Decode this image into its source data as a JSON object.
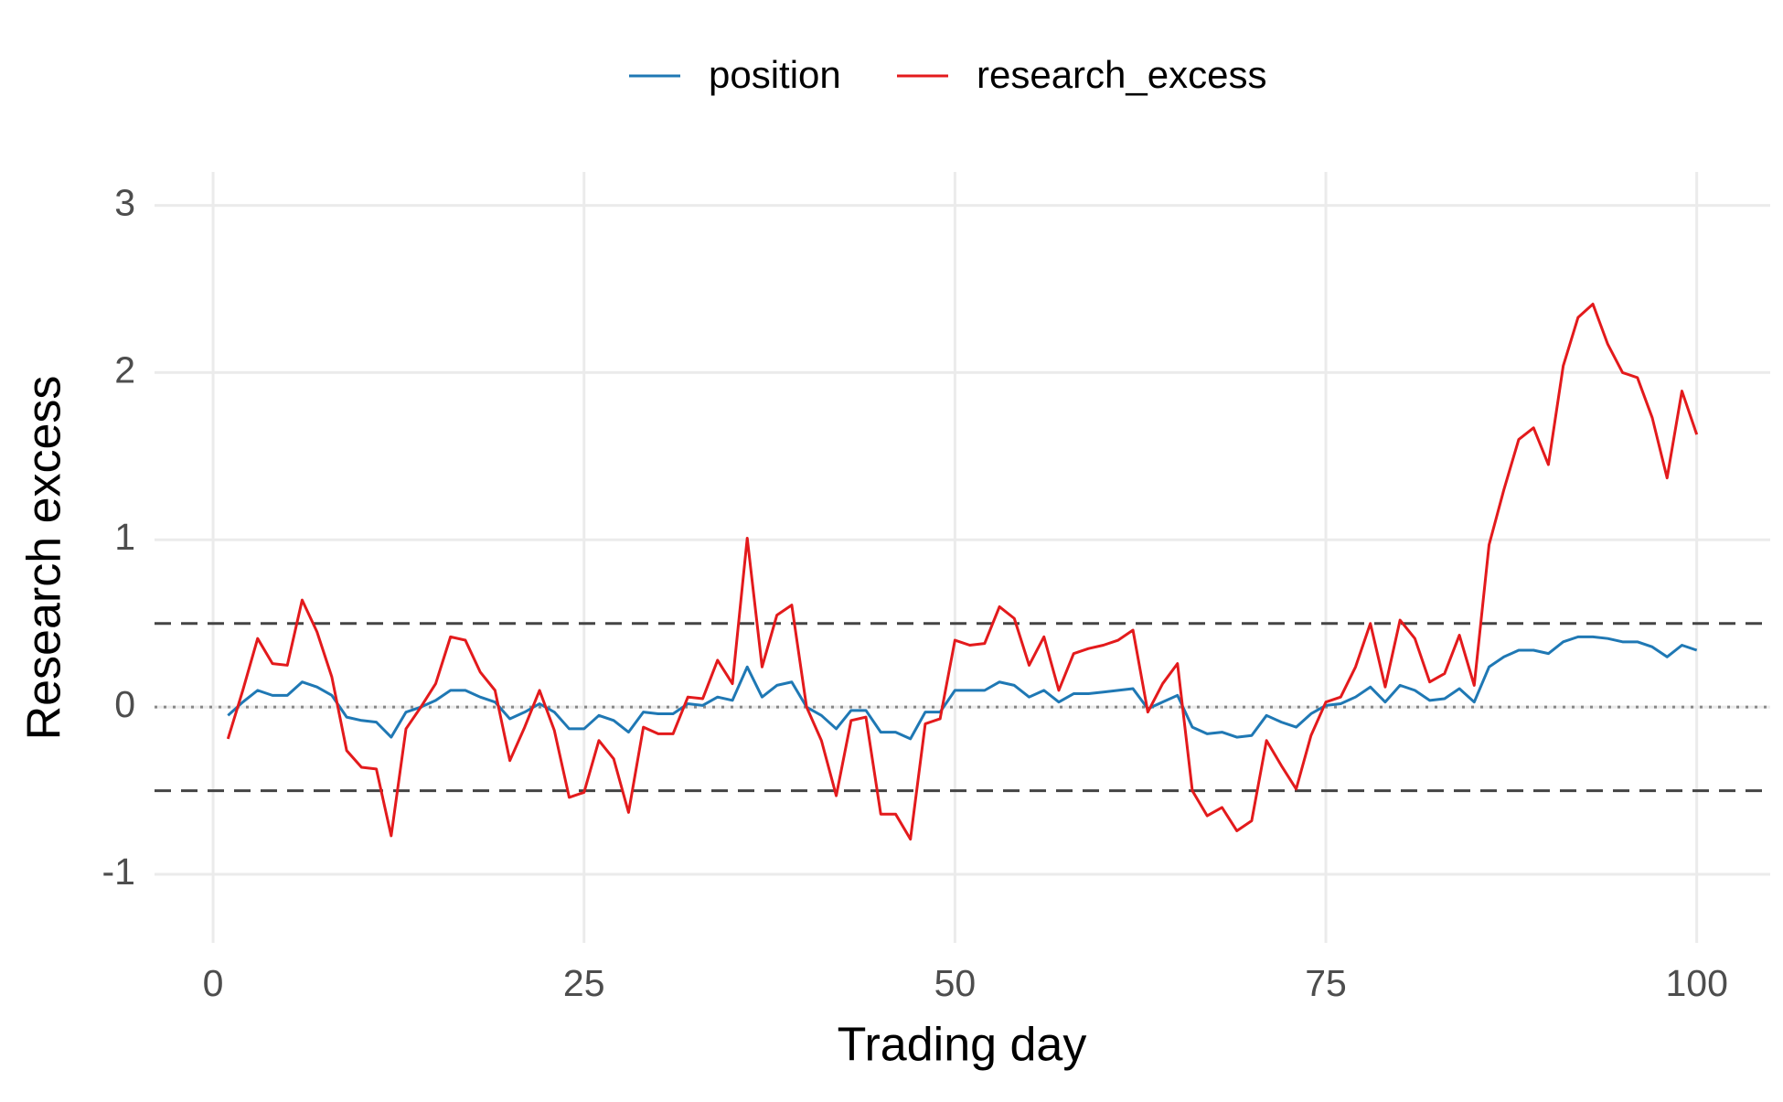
{
  "chart_data": {
    "type": "line",
    "x_label": "Trading day",
    "y_label": "Research excess",
    "legend": "top",
    "grid": true,
    "xlim": [
      -3.95,
      104.95
    ],
    "ylim": [
      -1.41,
      3.2
    ],
    "xticks": [
      0,
      25,
      50,
      75,
      100
    ],
    "yticks": [
      -1,
      0,
      1,
      2,
      3
    ],
    "reference_lines": [
      {
        "value": 0.5,
        "style": "dashed",
        "color": "#444444"
      },
      {
        "value": -0.5,
        "style": "dashed",
        "color": "#444444"
      },
      {
        "value": 0,
        "style": "dotted",
        "color": "#888888"
      }
    ],
    "x": [
      1,
      2,
      3,
      4,
      5,
      6,
      7,
      8,
      9,
      10,
      11,
      12,
      13,
      14,
      15,
      16,
      17,
      18,
      19,
      20,
      21,
      22,
      23,
      24,
      25,
      26,
      27,
      28,
      29,
      30,
      31,
      32,
      33,
      34,
      35,
      36,
      37,
      38,
      39,
      40,
      41,
      42,
      43,
      44,
      45,
      46,
      47,
      48,
      49,
      50,
      51,
      52,
      53,
      54,
      55,
      56,
      57,
      58,
      59,
      60,
      61,
      62,
      63,
      64,
      65,
      66,
      67,
      68,
      69,
      70,
      71,
      72,
      73,
      74,
      75,
      76,
      77,
      78,
      79,
      80,
      81,
      82,
      83,
      84,
      85,
      86,
      87,
      88,
      89,
      90,
      91,
      92,
      93,
      94,
      95,
      96,
      97,
      98,
      99,
      100
    ],
    "series": [
      {
        "name": "position",
        "color": "#1f78b4",
        "values": [
          -0.05,
          0.03,
          0.1,
          0.07,
          0.07,
          0.15,
          0.12,
          0.07,
          -0.06,
          -0.08,
          -0.09,
          -0.18,
          -0.03,
          0.0,
          0.04,
          0.1,
          0.1,
          0.06,
          0.03,
          -0.07,
          -0.03,
          0.02,
          -0.03,
          -0.13,
          -0.13,
          -0.05,
          -0.08,
          -0.15,
          -0.03,
          -0.04,
          -0.04,
          0.02,
          0.01,
          0.06,
          0.04,
          0.24,
          0.06,
          0.13,
          0.15,
          0.0,
          -0.05,
          -0.13,
          -0.02,
          -0.02,
          -0.15,
          -0.15,
          -0.19,
          -0.03,
          -0.03,
          0.1,
          0.1,
          0.1,
          0.15,
          0.13,
          0.06,
          0.1,
          0.03,
          0.08,
          0.08,
          0.09,
          0.1,
          0.11,
          -0.01,
          0.03,
          0.07,
          -0.12,
          -0.16,
          -0.15,
          -0.18,
          -0.17,
          -0.05,
          -0.09,
          -0.12,
          -0.04,
          0.01,
          0.02,
          0.06,
          0.12,
          0.03,
          0.13,
          0.1,
          0.04,
          0.05,
          0.11,
          0.03,
          0.24,
          0.3,
          0.34,
          0.34,
          0.32,
          0.39,
          0.42,
          0.42,
          0.41,
          0.39,
          0.39,
          0.36,
          0.3,
          0.37,
          0.34
        ]
      },
      {
        "name": "research_excess",
        "color": "#e31a1c",
        "values": [
          -0.19,
          0.1,
          0.41,
          0.26,
          0.25,
          0.64,
          0.45,
          0.18,
          -0.26,
          -0.36,
          -0.37,
          -0.77,
          -0.13,
          0.0,
          0.14,
          0.42,
          0.4,
          0.21,
          0.1,
          -0.32,
          -0.12,
          0.1,
          -0.14,
          -0.54,
          -0.51,
          -0.2,
          -0.31,
          -0.63,
          -0.12,
          -0.16,
          -0.16,
          0.06,
          0.05,
          0.28,
          0.14,
          1.01,
          0.24,
          0.55,
          0.61,
          0.0,
          -0.2,
          -0.53,
          -0.08,
          -0.06,
          -0.64,
          -0.64,
          -0.79,
          -0.1,
          -0.07,
          0.4,
          0.37,
          0.38,
          0.6,
          0.53,
          0.25,
          0.42,
          0.1,
          0.32,
          0.35,
          0.37,
          0.4,
          0.46,
          -0.03,
          0.14,
          0.26,
          -0.5,
          -0.65,
          -0.6,
          -0.74,
          -0.68,
          -0.2,
          -0.35,
          -0.49,
          -0.17,
          0.03,
          0.06,
          0.24,
          0.5,
          0.12,
          0.52,
          0.41,
          0.15,
          0.2,
          0.43,
          0.13,
          0.97,
          1.3,
          1.6,
          1.67,
          1.45,
          2.04,
          2.33,
          2.41,
          2.17,
          2.0,
          1.97,
          1.73,
          1.37,
          1.89,
          1.63
        ]
      }
    ]
  }
}
